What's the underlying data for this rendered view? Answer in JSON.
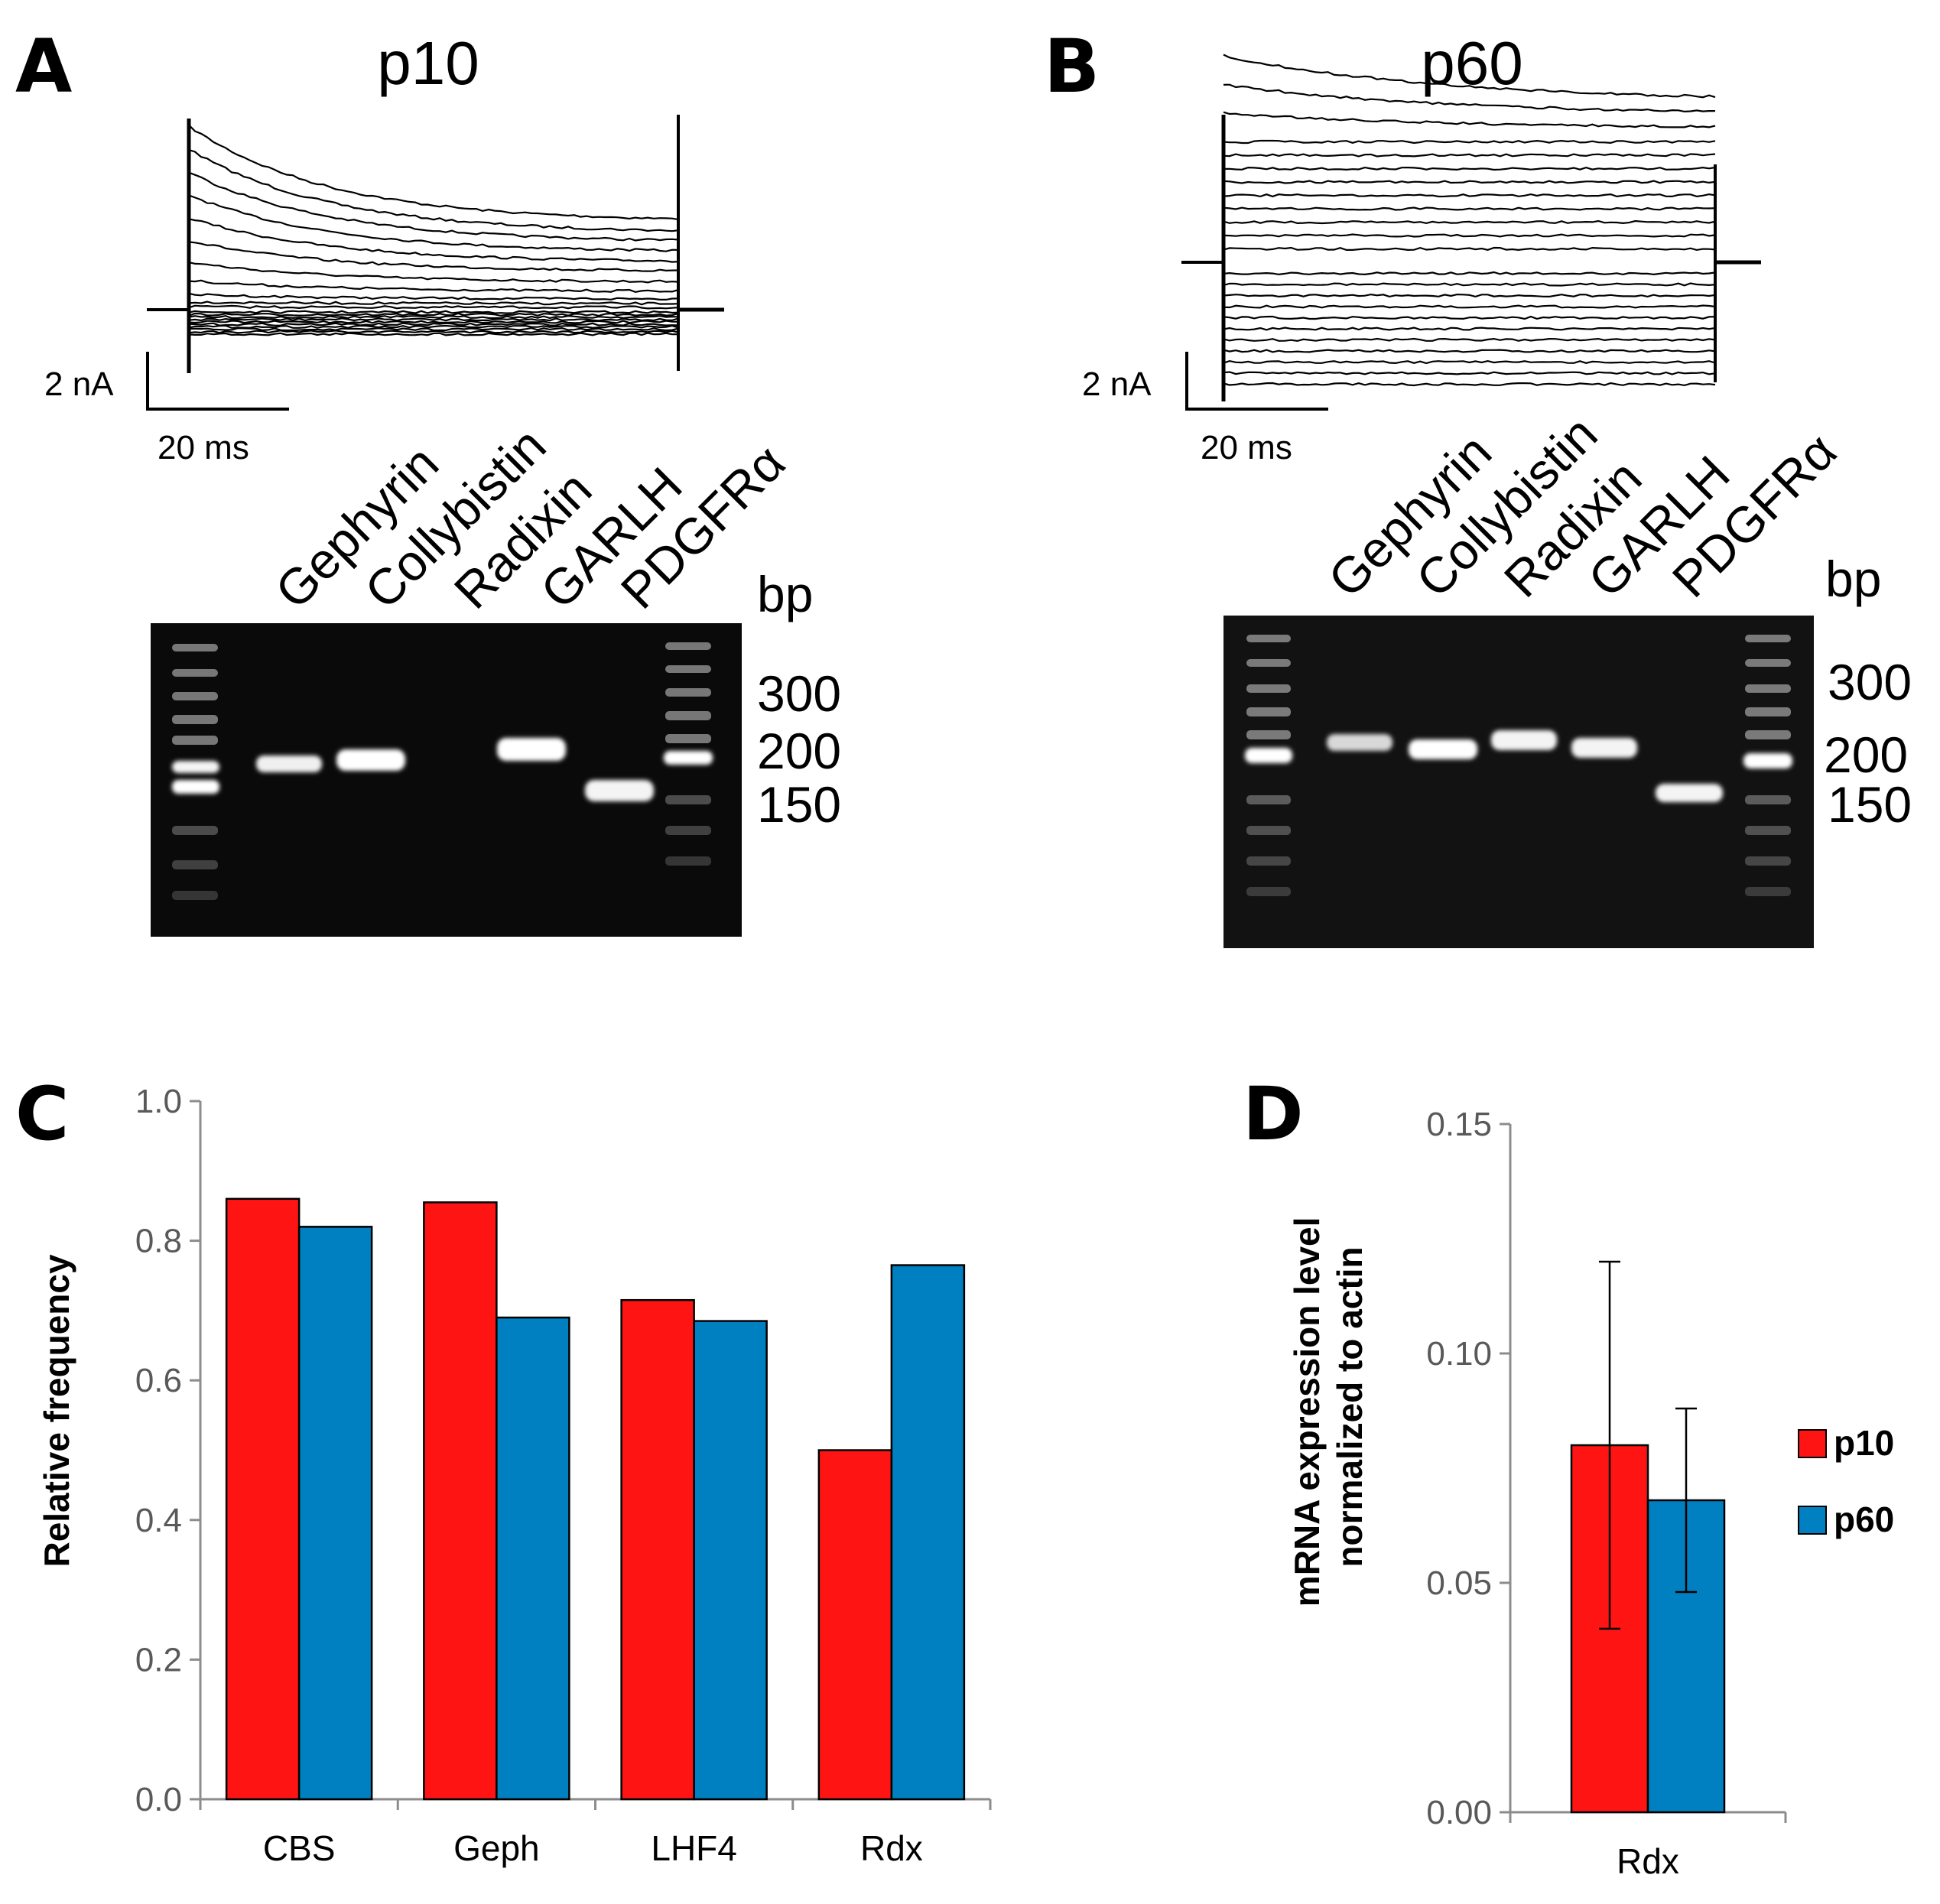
{
  "panels": {
    "A": {
      "letter": "A",
      "title": "p10",
      "scale_current": "2 nA",
      "scale_time": "20 ms",
      "lanes": [
        "Gephyrin",
        "Collybistin",
        "Radixin",
        "GARLH",
        "PDGFRα"
      ],
      "bp_unit": "bp",
      "bp_markers": [
        "300",
        "200",
        "150"
      ]
    },
    "B": {
      "letter": "B",
      "title": "p60",
      "scale_current": "2 nA",
      "scale_time": "20 ms",
      "lanes": [
        "Gephyrin",
        "Collybistin",
        "Radixin",
        "GARLH",
        "PDGFRα"
      ],
      "bp_unit": "bp",
      "bp_markers": [
        "300",
        "200",
        "150"
      ]
    },
    "C": {
      "letter": "C"
    },
    "D": {
      "letter": "D"
    }
  },
  "colors": {
    "p10": "#ff1414",
    "p60": "#0080c0",
    "axis": "#8c8c8c",
    "gel_bg": "#0a0a0a",
    "band": "#f2f2f2"
  },
  "chart_data": [
    {
      "id": "C",
      "type": "bar",
      "title": "",
      "xlabel": "",
      "ylabel": "Relative  frequency",
      "categories": [
        "CBS",
        "Geph",
        "LHF4",
        "Rdx"
      ],
      "series": [
        {
          "name": "p10",
          "values": [
            0.86,
            0.855,
            0.715,
            0.5
          ]
        },
        {
          "name": "p60",
          "values": [
            0.82,
            0.69,
            0.685,
            0.765
          ]
        }
      ],
      "ylim": [
        0,
        1.0
      ],
      "yticks": [
        "0.0",
        "0.2",
        "0.4",
        "0.6",
        "0.8",
        "1.0"
      ],
      "grid": false
    },
    {
      "id": "D",
      "type": "bar",
      "title": "",
      "xlabel": "",
      "ylabel": [
        "mRNA expression level",
        "normalized to actin"
      ],
      "categories": [
        "Rdx"
      ],
      "series": [
        {
          "name": "p10",
          "values": [
            0.08
          ],
          "error": [
            0.04
          ]
        },
        {
          "name": "p60",
          "values": [
            0.068
          ],
          "error": [
            0.02
          ]
        }
      ],
      "ylim": [
        0,
        0.15
      ],
      "yticks": [
        "0.00",
        "0.05",
        "0.10",
        "0.15"
      ],
      "legend": {
        "position": "right",
        "entries": [
          "p10",
          "p60"
        ]
      },
      "grid": false
    }
  ]
}
